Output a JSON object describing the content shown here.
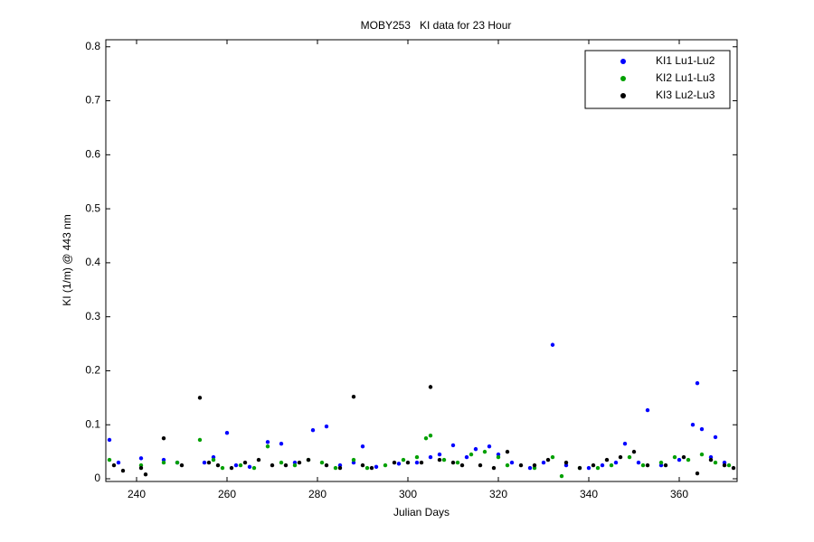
{
  "chart_data": {
    "type": "scatter",
    "title": "MOBY253   KI data for 23 Hour",
    "x_label": "Julian Days",
    "y_label": "KI (1/m) @ 443 nm",
    "xlim": [
      233.2,
      372.8
    ],
    "ylim": [
      -0.005,
      0.813
    ],
    "xticks": [
      240,
      260,
      280,
      300,
      320,
      340,
      360
    ],
    "yticks": [
      0,
      0.1,
      0.2,
      0.3,
      0.4,
      0.5,
      0.6,
      0.7,
      0.8
    ],
    "legend": "top-right",
    "series": [
      {
        "name": "KI1 Lu1-Lu2",
        "color": "#0000ff",
        "x": [
          234,
          236,
          241,
          246,
          249,
          255,
          257,
          260,
          262,
          265,
          269,
          272,
          275,
          279,
          282,
          285,
          288,
          290,
          293,
          298,
          302,
          305,
          307,
          310,
          313,
          315,
          318,
          320,
          323,
          327,
          330,
          332,
          335,
          340,
          343,
          346,
          348,
          351,
          353,
          356,
          360,
          363,
          364,
          365,
          367,
          368,
          370
        ],
        "values": [
          0.072,
          0.03,
          0.038,
          0.035,
          0.03,
          0.03,
          0.04,
          0.085,
          0.025,
          0.022,
          0.068,
          0.065,
          0.03,
          0.09,
          0.097,
          0.025,
          0.03,
          0.06,
          0.022,
          0.028,
          0.03,
          0.04,
          0.045,
          0.062,
          0.04,
          0.055,
          0.06,
          0.045,
          0.03,
          0.02,
          0.03,
          0.248,
          0.025,
          0.02,
          0.025,
          0.03,
          0.065,
          0.03,
          0.127,
          0.025,
          0.035,
          0.1,
          0.177,
          0.092,
          0.04,
          0.077,
          0.03
        ]
      },
      {
        "name": "KI2 Lu1-Lu3",
        "color": "#00a000",
        "x": [
          234,
          241,
          246,
          249,
          254,
          257,
          259,
          263,
          266,
          269,
          272,
          275,
          278,
          281,
          284,
          288,
          291,
          295,
          299,
          302,
          304,
          305,
          308,
          311,
          314,
          317,
          320,
          322,
          328,
          332,
          334,
          338,
          342,
          345,
          349,
          352,
          356,
          359,
          362,
          365,
          368,
          371
        ],
        "values": [
          0.035,
          0.025,
          0.03,
          0.03,
          0.072,
          0.035,
          0.02,
          0.025,
          0.02,
          0.06,
          0.03,
          0.025,
          0.035,
          0.03,
          0.02,
          0.035,
          0.02,
          0.025,
          0.035,
          0.04,
          0.075,
          0.08,
          0.035,
          0.03,
          0.045,
          0.05,
          0.04,
          0.025,
          0.02,
          0.04,
          0.005,
          0.02,
          0.02,
          0.025,
          0.04,
          0.025,
          0.03,
          0.04,
          0.035,
          0.045,
          0.03,
          0.025
        ]
      },
      {
        "name": "KI3 Lu2-Lu3",
        "color": "#000000",
        "x": [
          235,
          237,
          241,
          242,
          246,
          250,
          254,
          256,
          258,
          261,
          264,
          267,
          270,
          273,
          276,
          278,
          282,
          285,
          288,
          290,
          292,
          297,
          300,
          303,
          305,
          307,
          310,
          312,
          316,
          319,
          322,
          325,
          328,
          331,
          335,
          338,
          341,
          344,
          347,
          350,
          353,
          357,
          361,
          364,
          367,
          370,
          372
        ],
        "values": [
          0.025,
          0.015,
          0.02,
          0.008,
          0.075,
          0.025,
          0.15,
          0.03,
          0.025,
          0.02,
          0.03,
          0.035,
          0.025,
          0.025,
          0.03,
          0.035,
          0.025,
          0.02,
          0.152,
          0.025,
          0.02,
          0.03,
          0.03,
          0.03,
          0.17,
          0.035,
          0.03,
          0.025,
          0.025,
          0.02,
          0.05,
          0.025,
          0.025,
          0.035,
          0.03,
          0.02,
          0.025,
          0.035,
          0.04,
          0.05,
          0.025,
          0.025,
          0.04,
          0.01,
          0.035,
          0.025,
          0.02
        ]
      }
    ]
  }
}
